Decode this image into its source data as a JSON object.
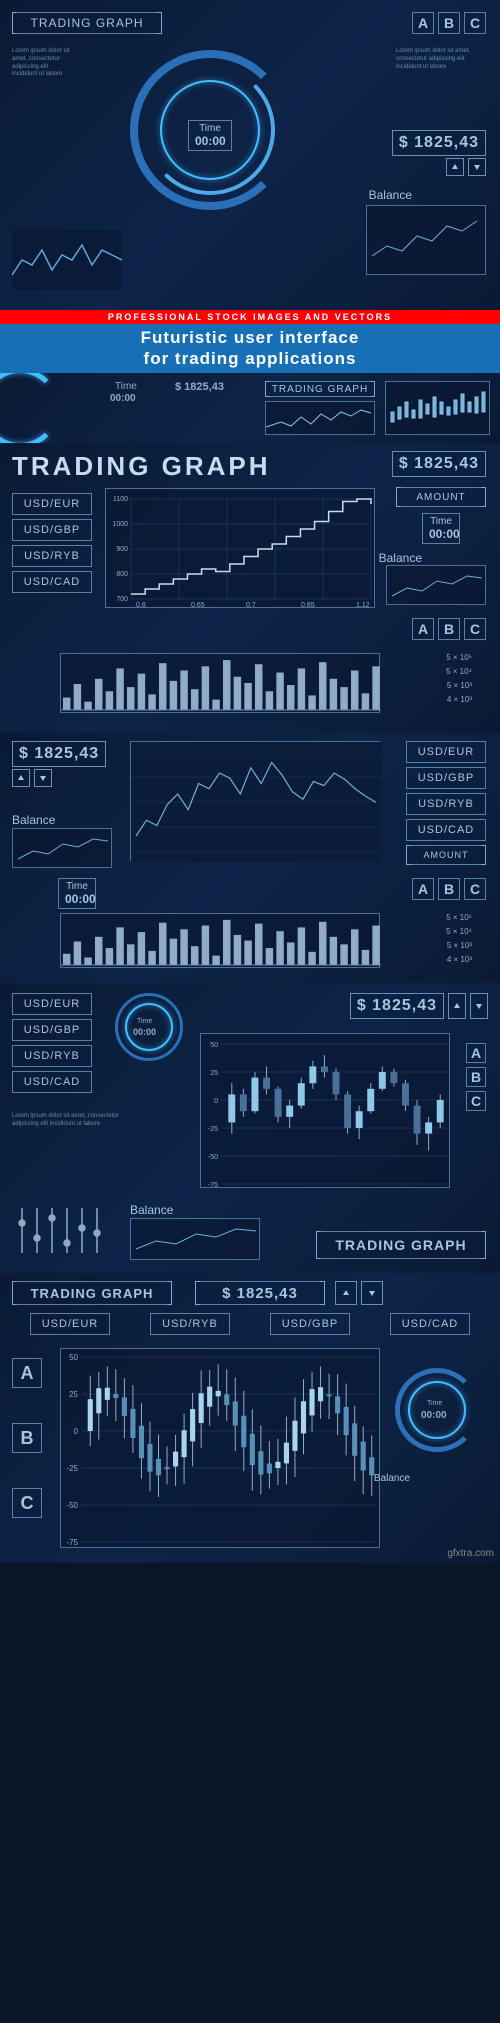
{
  "colors": {
    "bg_dark": "#0a1628",
    "bg_panel": "#0d2448",
    "accent_cyan": "#3fbfff",
    "accent_blue": "#176fb5",
    "line": "#5a7fa8",
    "text": "#a8c4e0",
    "text_bright": "#c8dcf0",
    "red": "#ff0000",
    "white": "#ffffff"
  },
  "banner": {
    "red_text": "PROFESSIONAL STOCK IMAGES AND VECTORS",
    "title_line1": "Futuristic user interface",
    "title_line2": "for trading applications"
  },
  "common": {
    "trading_graph": "TRADING GRAPH",
    "price": "$ 1825,43",
    "time_label": "Time",
    "time_value": "00:00",
    "balance": "Balance",
    "amount": "AMOUNT",
    "abc": [
      "A",
      "B",
      "C"
    ],
    "currencies": [
      "USD/EUR",
      "USD/GBP",
      "USD/RYB",
      "USD/CAD"
    ],
    "exponents": [
      "5 × 10⁵",
      "5 × 10⁴",
      "5 × 10³",
      "4 × 10³"
    ]
  },
  "panel2": {
    "chart": {
      "type": "step-line",
      "y_ticks": [
        700,
        800,
        900,
        1000,
        1100
      ],
      "x_ticks": [
        0.6,
        0.65,
        0.7,
        0.85,
        1.12
      ],
      "values": [
        720,
        740,
        760,
        780,
        800,
        820,
        810,
        840,
        870,
        900,
        920,
        950,
        980,
        1010,
        1050,
        1090,
        1100,
        1080
      ],
      "grid_color": "#2a4568",
      "line_color": "#c8dcf0",
      "line_width": 1.5,
      "background": "#0a1c3a"
    },
    "bars": {
      "type": "bar",
      "values": [
        12,
        25,
        8,
        30,
        18,
        40,
        22,
        35,
        15,
        45,
        28,
        38,
        20,
        42,
        10,
        48,
        32,
        26,
        44,
        18,
        36,
        24,
        40,
        14,
        46,
        30,
        22,
        38,
        16,
        42
      ],
      "bar_color": "#8fabc8",
      "max": 50
    }
  },
  "panel3": {
    "chart": {
      "type": "line",
      "values": [
        20,
        35,
        30,
        50,
        60,
        45,
        70,
        65,
        80,
        75,
        60,
        85,
        70,
        90,
        78,
        62,
        55,
        72,
        68,
        80,
        74,
        65,
        58,
        52
      ],
      "line_color": "#6fafd8",
      "line_width": 1.2,
      "background": "#0a1c3a"
    }
  },
  "panel4": {
    "candlestick": {
      "type": "candlestick",
      "y_ticks": [
        -75,
        -50,
        -25,
        0,
        25,
        50
      ],
      "sticks": [
        {
          "o": -20,
          "c": 5,
          "h": 15,
          "l": -30
        },
        {
          "o": 5,
          "c": -10,
          "h": 10,
          "l": -15
        },
        {
          "o": -10,
          "c": 20,
          "h": 25,
          "l": -12
        },
        {
          "o": 20,
          "c": 10,
          "h": 30,
          "l": 5
        },
        {
          "o": 10,
          "c": -15,
          "h": 12,
          "l": -20
        },
        {
          "o": -15,
          "c": -5,
          "h": 0,
          "l": -25
        },
        {
          "o": -5,
          "c": 15,
          "h": 20,
          "l": -8
        },
        {
          "o": 15,
          "c": 30,
          "h": 35,
          "l": 10
        },
        {
          "o": 30,
          "c": 25,
          "h": 40,
          "l": 20
        },
        {
          "o": 25,
          "c": 5,
          "h": 28,
          "l": 0
        },
        {
          "o": 5,
          "c": -25,
          "h": 8,
          "l": -30
        },
        {
          "o": -25,
          "c": -10,
          "h": -5,
          "l": -35
        },
        {
          "o": -10,
          "c": 10,
          "h": 15,
          "l": -12
        },
        {
          "o": 10,
          "c": 25,
          "h": 30,
          "l": 8
        },
        {
          "o": 25,
          "c": 15,
          "h": 28,
          "l": 12
        },
        {
          "o": 15,
          "c": -5,
          "h": 18,
          "l": -10
        },
        {
          "o": -5,
          "c": -30,
          "h": 0,
          "l": -40
        },
        {
          "o": -30,
          "c": -20,
          "h": -15,
          "l": -45
        },
        {
          "o": -20,
          "c": 0,
          "h": 5,
          "l": -25
        }
      ],
      "up_color": "#8fc8e8",
      "down_color": "#4a6f98",
      "grid_color": "#2a4568"
    }
  },
  "panel5": {
    "candlestick2": {
      "type": "candlestick",
      "y_ticks": [
        -75,
        -50,
        -25,
        0,
        25,
        50
      ],
      "count": 34
    }
  },
  "watermark": "gfxtra.com",
  "lorem": "Lorem ipsum dolor sit amet, consectetur adipiscing elit incididunt ut labore"
}
